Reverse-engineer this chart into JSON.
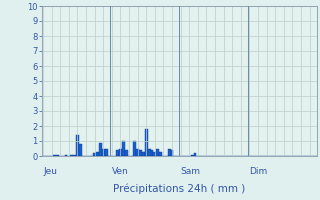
{
  "title": "Précipitations 24h ( mm )",
  "background_color": "#dff0ee",
  "plot_bg_color": "#e4f2ef",
  "bar_color": "#1a5fcc",
  "bar_edge_color": "#0a3a99",
  "ylim": [
    0,
    10
  ],
  "yticks": [
    0,
    1,
    2,
    3,
    4,
    5,
    6,
    7,
    8,
    9,
    10
  ],
  "day_labels": [
    "Jeu",
    "Ven",
    "Sam",
    "Dim"
  ],
  "day_positions": [
    0,
    24,
    48,
    72
  ],
  "total_hours": 96,
  "grid_color": "#b8ceca",
  "vline_color": "#6688aa",
  "label_color": "#3355aa",
  "tick_color": "#3355aa",
  "values": [
    0.0,
    0.0,
    0.0,
    0.0,
    0.05,
    0.05,
    0.0,
    0.0,
    0.05,
    0.0,
    0.05,
    0.1,
    1.4,
    0.8,
    0.0,
    0.0,
    0.0,
    0.0,
    0.2,
    0.3,
    0.9,
    0.5,
    0.5,
    0.0,
    0.0,
    0.0,
    0.4,
    0.5,
    1.0,
    0.4,
    0.0,
    0.0,
    1.0,
    0.5,
    0.4,
    0.3,
    1.8,
    0.5,
    0.4,
    0.3,
    0.5,
    0.3,
    0.0,
    0.0,
    0.5,
    0.4,
    0.0,
    0.0,
    0.0,
    0.0,
    0.0,
    0.0,
    0.1,
    0.2,
    0.0,
    0.0,
    0.0,
    0.0,
    0.0,
    0.0,
    0.0,
    0.0,
    0.0,
    0.0,
    0.0,
    0.0,
    0.0,
    0.0,
    0.0,
    0.0,
    0.0,
    0.0,
    0.0,
    0.0,
    0.0,
    0.0,
    0.0,
    0.0,
    0.0,
    0.0,
    0.0,
    0.0,
    0.0,
    0.0,
    0.0,
    0.0,
    0.0,
    0.0,
    0.0,
    0.0,
    0.0,
    0.0,
    0.0,
    0.0,
    0.0,
    0.0
  ]
}
